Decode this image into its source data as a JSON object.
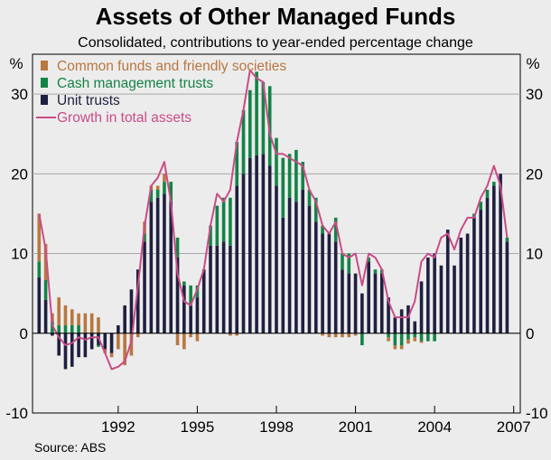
{
  "chart_data": {
    "type": "bar",
    "stacked": true,
    "title": "Assets of Other Managed Funds",
    "subtitle": "Consolidated, contributions to year-ended percentage change",
    "ylabel_left": "%",
    "ylabel_right": "%",
    "ylim": [
      -10,
      35
    ],
    "yticks": [
      -10,
      0,
      10,
      20,
      30
    ],
    "xrange": [
      1988.75,
      2007.25
    ],
    "xticks": [
      1992,
      1995,
      1998,
      2001,
      2004,
      2007
    ],
    "source": "Source: ABS",
    "colors": {
      "common": "#b8773f",
      "cash": "#138346",
      "unit": "#1f1f40",
      "growth": "#c94c86"
    },
    "legend": [
      {
        "key": "common",
        "label": "Common funds and friendly societies"
      },
      {
        "key": "cash",
        "label": "Cash management trusts"
      },
      {
        "key": "unit",
        "label": "Unit trusts"
      },
      {
        "key": "growth",
        "label": "Growth in total assets"
      }
    ],
    "x": [
      1989.0,
      1989.25,
      1989.5,
      1989.75,
      1990.0,
      1990.25,
      1990.5,
      1990.75,
      1991.0,
      1991.25,
      1991.5,
      1991.75,
      1992.0,
      1992.25,
      1992.5,
      1992.75,
      1993.0,
      1993.25,
      1993.5,
      1993.75,
      1994.0,
      1994.25,
      1994.5,
      1994.75,
      1995.0,
      1995.25,
      1995.5,
      1995.75,
      1996.0,
      1996.25,
      1996.5,
      1996.75,
      1997.0,
      1997.25,
      1997.5,
      1997.75,
      1998.0,
      1998.25,
      1998.5,
      1998.75,
      1999.0,
      1999.25,
      1999.5,
      1999.75,
      2000.0,
      2000.25,
      2000.5,
      2000.75,
      2001.0,
      2001.25,
      2001.5,
      2001.75,
      2002.0,
      2002.25,
      2002.5,
      2002.75,
      2003.0,
      2003.25,
      2003.5,
      2003.75,
      2004.0,
      2004.25,
      2004.5,
      2004.75,
      2005.0,
      2005.25,
      2005.5,
      2005.75,
      2006.0,
      2006.25,
      2006.5,
      2006.75
    ],
    "series": [
      {
        "name": "Unit trusts",
        "key": "unit",
        "values": [
          7.0,
          4.2,
          -0.3,
          -2.8,
          -4.5,
          -4.2,
          -3.0,
          -3.0,
          -2.0,
          -1.5,
          -2.0,
          -2.5,
          1.0,
          3.5,
          5.5,
          8.0,
          11.5,
          16.5,
          17.0,
          17.5,
          16.5,
          9.5,
          6.0,
          3.5,
          4.5,
          8.0,
          11.0,
          11.0,
          11.5,
          11.0,
          18.5,
          20.0,
          22.0,
          22.3,
          22.5,
          21.0,
          18.5,
          14.5,
          17.0,
          16.5,
          18.0,
          16.0,
          14.0,
          12.5,
          12.5,
          11.5,
          8.0,
          7.5,
          7.5,
          5.0,
          9.0,
          7.5,
          7.5,
          4.5,
          2.0,
          3.0,
          3.5,
          1.5,
          6.5,
          9.5,
          10.0,
          8.5,
          13.0,
          8.5,
          12.0,
          12.5,
          14.5,
          15.5,
          17.0,
          18.5,
          20.0,
          11.5
        ]
      },
      {
        "name": "Cash management trusts",
        "key": "cash",
        "values": [
          2.0,
          2.5,
          1.5,
          1.0,
          1.0,
          1.0,
          1.0,
          0.0,
          0.0,
          -0.2,
          0.0,
          0.0,
          0.0,
          0.0,
          0.0,
          0.0,
          1.0,
          1.5,
          1.0,
          1.5,
          2.5,
          2.5,
          0.5,
          2.5,
          1.5,
          0.0,
          2.5,
          5.0,
          5.5,
          6.0,
          5.5,
          8.0,
          8.5,
          10.5,
          9.0,
          10.0,
          6.0,
          7.5,
          5.5,
          6.5,
          3.5,
          2.0,
          3.0,
          1.0,
          0.0,
          3.0,
          2.0,
          2.5,
          0.0,
          -1.5,
          0.5,
          0.5,
          0.5,
          -0.5,
          -1.5,
          -1.5,
          -0.8,
          -0.5,
          -1.0,
          -1.0,
          -1.0,
          0.0,
          0.0,
          0.0,
          0.0,
          0.0,
          0.5,
          1.0,
          1.0,
          0.5,
          0.0,
          0.5
        ]
      },
      {
        "name": "Common funds and friendly societies",
        "key": "common",
        "values": [
          6.0,
          4.5,
          1.0,
          3.5,
          2.5,
          2.0,
          1.5,
          2.5,
          2.5,
          2.0,
          -0.5,
          -0.5,
          -2.0,
          -4.0,
          -2.8,
          -0.5,
          1.5,
          0.5,
          0.5,
          1.0,
          0.0,
          -1.5,
          -2.0,
          -0.5,
          -1.0,
          0.0,
          0.0,
          0.0,
          0.0,
          -0.3,
          -0.3,
          0.0,
          0.0,
          0.0,
          0.0,
          0.0,
          0.0,
          0.0,
          0.0,
          0.0,
          0.0,
          0.0,
          0.0,
          -0.3,
          -0.5,
          -0.5,
          -0.5,
          -0.5,
          -0.3,
          0.0,
          0.0,
          0.0,
          0.0,
          -0.5,
          -0.5,
          -0.5,
          -0.5,
          -0.5,
          -0.2,
          0.0,
          0.0,
          0.0,
          0.0,
          0.0,
          0.0,
          0.0,
          0.0,
          0.0,
          0.0,
          0.0,
          0.0,
          0.0
        ]
      },
      {
        "name": "Growth in total assets",
        "key": "growth",
        "type": "line",
        "values": [
          15.0,
          10.5,
          1.0,
          -0.5,
          -1.5,
          -1.2,
          -0.5,
          -0.8,
          -0.5,
          -0.5,
          -2.5,
          -4.5,
          -4.2,
          -3.5,
          -1.0,
          6.0,
          13.5,
          18.5,
          19.5,
          21.5,
          16.5,
          7.5,
          4.0,
          3.5,
          5.5,
          8.0,
          13.5,
          17.5,
          16.5,
          18.0,
          24.0,
          28.0,
          33.0,
          32.0,
          31.5,
          25.0,
          22.5,
          22.5,
          22.0,
          21.5,
          21.0,
          18.0,
          16.5,
          13.5,
          12.5,
          14.0,
          10.0,
          9.5,
          10.0,
          6.0,
          10.0,
          9.5,
          8.0,
          4.0,
          2.0,
          2.0,
          2.0,
          4.0,
          9.0,
          10.0,
          9.5,
          12.0,
          12.5,
          10.5,
          13.0,
          14.5,
          14.5,
          17.0,
          18.5,
          21.0,
          18.5,
          12.0
        ]
      }
    ]
  }
}
